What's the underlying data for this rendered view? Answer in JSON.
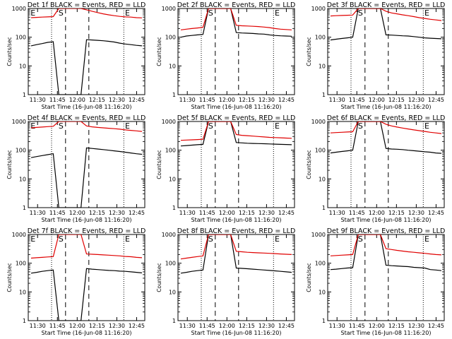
{
  "figure": {
    "colors": {
      "background": "#ffffff",
      "axes": "#000000",
      "events": "#000000",
      "lld": "#e00000"
    }
  },
  "chart_data": [
    {
      "type": "line",
      "title": "Det 1f BLACK = Events, RED = LLD",
      "xlabel": "Start Time (16-Jun-08 11:16:20)",
      "ylabel": "Counts/sec",
      "y_scale": "log",
      "ylim": [
        1,
        1000
      ],
      "y_tick_labels": [
        "1",
        "10",
        "100",
        "1000"
      ],
      "x_tick_labels": [
        "11:30",
        "11:45",
        "12:00",
        "12:15",
        "12:30",
        "12:45"
      ],
      "annotations": [
        "E",
        "S",
        "E"
      ],
      "series": [
        {
          "color": "#000000",
          "values": [
            50,
            55,
            60,
            66,
            70,
            1,
            1,
            1,
            1,
            1,
            82,
            80,
            78,
            75,
            72,
            68,
            62,
            58,
            55,
            52,
            50
          ]
        },
        {
          "color": "#e00000",
          "values": [
            480,
            490,
            500,
            510,
            520,
            1000,
            1000,
            1000,
            1000,
            1000,
            900,
            800,
            720,
            650,
            600,
            560,
            530,
            510,
            500,
            480,
            470
          ]
        }
      ]
    },
    {
      "type": "line",
      "title": "Det 2f BLACK = Events, RED = LLD",
      "xlabel": "Start Time (16-Jun-08 11:16:20)",
      "ylabel": "Counts/sec",
      "y_scale": "log",
      "ylim": [
        1,
        1000
      ],
      "y_tick_labels": [
        "1",
        "10",
        "100",
        "1000"
      ],
      "x_tick_labels": [
        "11:30",
        "11:45",
        "12:00",
        "12:15",
        "12:30",
        "12:45"
      ],
      "annotations": [
        "S",
        "E"
      ],
      "series": [
        {
          "color": "#000000",
          "values": [
            100,
            110,
            115,
            120,
            125,
            1000,
            1000,
            1000,
            1000,
            1000,
            145,
            140,
            138,
            135,
            130,
            128,
            120,
            115,
            112,
            110,
            108
          ]
        },
        {
          "color": "#e00000",
          "values": [
            180,
            190,
            200,
            210,
            220,
            1000,
            1000,
            1000,
            1000,
            1000,
            260,
            250,
            245,
            240,
            235,
            225,
            215,
            200,
            190,
            185,
            180
          ]
        }
      ]
    },
    {
      "type": "line",
      "title": "Det 3f BLACK = Events, RED = LLD",
      "xlabel": "Start Time (16-Jun-08 11:16:20)",
      "ylabel": "Counts/sec",
      "y_scale": "log",
      "ylim": [
        1,
        1000
      ],
      "y_tick_labels": [
        "1",
        "10",
        "100",
        "1000"
      ],
      "x_tick_labels": [
        "11:30",
        "11:45",
        "12:00",
        "12:15",
        "12:30",
        "12:45"
      ],
      "annotations": [
        "S",
        "E"
      ],
      "series": [
        {
          "color": "#000000",
          "values": [
            80,
            85,
            90,
            95,
            100,
            1000,
            1000,
            1000,
            1000,
            1000,
            120,
            118,
            115,
            112,
            110,
            105,
            100,
            95,
            92,
            90,
            88
          ]
        },
        {
          "color": "#e00000",
          "values": [
            550,
            560,
            570,
            580,
            590,
            1000,
            1000,
            1000,
            1000,
            1000,
            800,
            700,
            650,
            600,
            560,
            520,
            480,
            450,
            420,
            400,
            380
          ]
        }
      ]
    },
    {
      "type": "line",
      "title": "Det 4f BLACK = Events, RED = LLD",
      "xlabel": "Start Time (16-Jun-08 11:16:20)",
      "ylabel": "Counts/sec",
      "y_scale": "log",
      "ylim": [
        1,
        1000
      ],
      "y_tick_labels": [
        "1",
        "10",
        "100",
        "1000"
      ],
      "x_tick_labels": [
        "11:30",
        "11:45",
        "12:00",
        "12:15",
        "12:30",
        "12:45"
      ],
      "annotations": [
        "E",
        "S",
        "E"
      ],
      "series": [
        {
          "color": "#000000",
          "values": [
            55,
            60,
            65,
            70,
            75,
            1,
            1,
            1,
            1,
            1,
            120,
            115,
            110,
            105,
            100,
            95,
            90,
            85,
            80,
            75,
            72
          ]
        },
        {
          "color": "#e00000",
          "values": [
            600,
            620,
            640,
            660,
            680,
            1000,
            1000,
            1000,
            1000,
            1000,
            700,
            650,
            620,
            600,
            580,
            560,
            540,
            510,
            490,
            470,
            450
          ]
        }
      ]
    },
    {
      "type": "line",
      "title": "Det 5f BLACK = Events, RED = LLD",
      "xlabel": "Start Time (16-Jun-08 11:16:20)",
      "ylabel": "Counts/sec",
      "y_scale": "log",
      "ylim": [
        1,
        1000
      ],
      "y_tick_labels": [
        "1",
        "10",
        "100",
        "1000"
      ],
      "x_tick_labels": [
        "11:30",
        "11:45",
        "12:00",
        "12:15",
        "12:30",
        "12:45"
      ],
      "annotations": [
        "S",
        "E"
      ],
      "series": [
        {
          "color": "#000000",
          "values": [
            140,
            145,
            150,
            155,
            160,
            1000,
            1000,
            1000,
            1000,
            1000,
            185,
            180,
            175,
            172,
            170,
            168,
            165,
            162,
            160,
            158,
            155
          ]
        },
        {
          "color": "#e00000",
          "values": [
            220,
            225,
            230,
            235,
            240,
            1000,
            1000,
            1000,
            1000,
            1000,
            350,
            330,
            320,
            310,
            300,
            290,
            280,
            275,
            270,
            265,
            260
          ]
        }
      ]
    },
    {
      "type": "line",
      "title": "Det 6f BLACK = Events, RED = LLD",
      "xlabel": "Start Time (16-Jun-08 11:16:20)",
      "ylabel": "Counts/sec",
      "y_scale": "log",
      "ylim": [
        1,
        1000
      ],
      "y_tick_labels": [
        "1",
        "10",
        "100",
        "1000"
      ],
      "x_tick_labels": [
        "11:30",
        "11:45",
        "12:00",
        "12:15",
        "12:30",
        "12:45"
      ],
      "annotations": [
        "S",
        "E"
      ],
      "series": [
        {
          "color": "#000000",
          "values": [
            80,
            85,
            90,
            95,
            100,
            1000,
            1000,
            1000,
            1000,
            1000,
            115,
            110,
            108,
            105,
            100,
            96,
            92,
            88,
            85,
            80,
            78
          ]
        },
        {
          "color": "#e00000",
          "values": [
            400,
            410,
            420,
            430,
            440,
            1000,
            1000,
            1000,
            1000,
            1000,
            800,
            700,
            640,
            590,
            550,
            510,
            480,
            450,
            420,
            400,
            380
          ]
        }
      ]
    },
    {
      "type": "line",
      "title": "Det 7f BLACK = Events, RED = LLD",
      "xlabel": "Start Time (16-Jun-08 11:16:20)",
      "ylabel": "Counts/sec",
      "y_scale": "log",
      "ylim": [
        1,
        1000
      ],
      "y_tick_labels": [
        "1",
        "10",
        "100",
        "1000"
      ],
      "x_tick_labels": [
        "11:30",
        "11:45",
        "12:00",
        "12:15",
        "12:30",
        "12:45"
      ],
      "annotations": [
        "E",
        "S",
        "E"
      ],
      "series": [
        {
          "color": "#000000",
          "values": [
            45,
            48,
            52,
            55,
            58,
            1,
            1,
            1,
            1,
            1,
            65,
            62,
            60,
            58,
            56,
            55,
            53,
            52,
            50,
            48,
            46
          ]
        },
        {
          "color": "#e00000",
          "values": [
            150,
            155,
            160,
            165,
            170,
            1000,
            1000,
            1000,
            1000,
            1000,
            210,
            205,
            200,
            195,
            190,
            185,
            180,
            172,
            168,
            160,
            155
          ]
        }
      ]
    },
    {
      "type": "line",
      "title": "Det 8f BLACK = Events, RED = LLD",
      "xlabel": "Start Time (16-Jun-08 11:16:20)",
      "ylabel": "Counts/sec",
      "y_scale": "log",
      "ylim": [
        1,
        1000
      ],
      "y_tick_labels": [
        "1",
        "10",
        "100",
        "1000"
      ],
      "x_tick_labels": [
        "11:30",
        "11:45",
        "12:00",
        "12:15",
        "12:30",
        "12:45"
      ],
      "annotations": [
        "S",
        "E"
      ],
      "series": [
        {
          "color": "#000000",
          "values": [
            45,
            48,
            52,
            55,
            58,
            1000,
            1000,
            1000,
            1000,
            1000,
            68,
            66,
            64,
            62,
            60,
            58,
            56,
            54,
            52,
            50,
            48
          ]
        },
        {
          "color": "#e00000",
          "values": [
            140,
            150,
            160,
            170,
            180,
            1000,
            1000,
            1000,
            1000,
            1000,
            260,
            250,
            240,
            235,
            230,
            225,
            220,
            215,
            210,
            205,
            200
          ]
        }
      ]
    },
    {
      "type": "line",
      "title": "Det 9f BLACK = Events, RED = LLD",
      "xlabel": "Start Time (16-Jun-08 11:16:20)",
      "ylabel": "Counts/sec",
      "y_scale": "log",
      "ylim": [
        1,
        1000
      ],
      "y_tick_labels": [
        "1",
        "10",
        "100",
        "1000"
      ],
      "x_tick_labels": [
        "11:30",
        "11:45",
        "12:00",
        "12:15",
        "12:30",
        "12:45"
      ],
      "annotations": [
        "S",
        "E"
      ],
      "series": [
        {
          "color": "#000000",
          "values": [
            60,
            62,
            65,
            68,
            70,
            1000,
            1000,
            1000,
            1000,
            1000,
            85,
            82,
            80,
            78,
            76,
            72,
            70,
            68,
            60,
            58,
            55
          ]
        },
        {
          "color": "#e00000",
          "values": [
            180,
            185,
            190,
            195,
            200,
            1000,
            1000,
            1000,
            1000,
            1000,
            320,
            300,
            280,
            265,
            250,
            240,
            230,
            220,
            210,
            200,
            195
          ]
        }
      ]
    }
  ]
}
